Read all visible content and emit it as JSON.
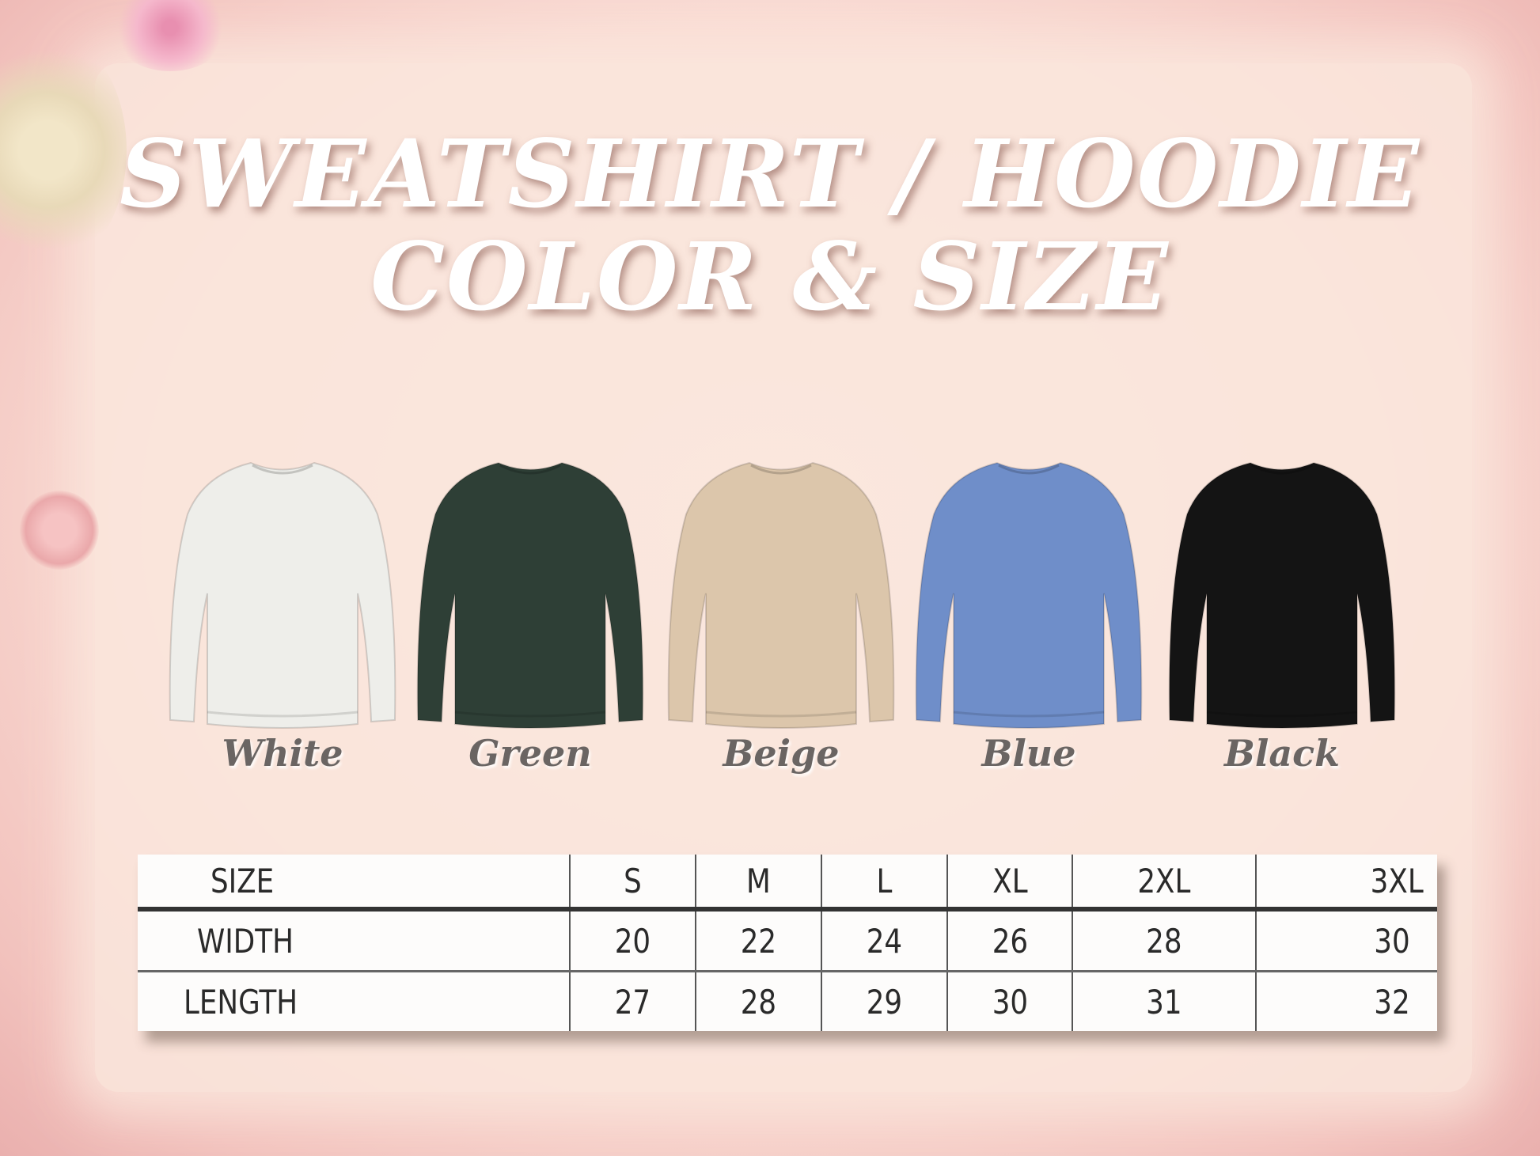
{
  "title": {
    "line1": "SWEATSHIRT / HOODIE",
    "line2": "COLOR & SIZE"
  },
  "colors": [
    {
      "name": "White",
      "hex": "#eeeeea"
    },
    {
      "name": "Green",
      "hex": "#2e3f36"
    },
    {
      "name": "Beige",
      "hex": "#dcc6ab"
    },
    {
      "name": "Blue",
      "hex": "#6f8ec9"
    },
    {
      "name": "Black",
      "hex": "#141414"
    }
  ],
  "size_table": {
    "header": [
      "SIZE",
      "S",
      "M",
      "L",
      "XL",
      "2XL",
      "3XL"
    ],
    "rows": [
      [
        "WIDTH",
        "20",
        "22",
        "24",
        "26",
        "28",
        "30"
      ],
      [
        "LENGTH",
        "27",
        "28",
        "29",
        "30",
        "31",
        "32"
      ]
    ]
  }
}
